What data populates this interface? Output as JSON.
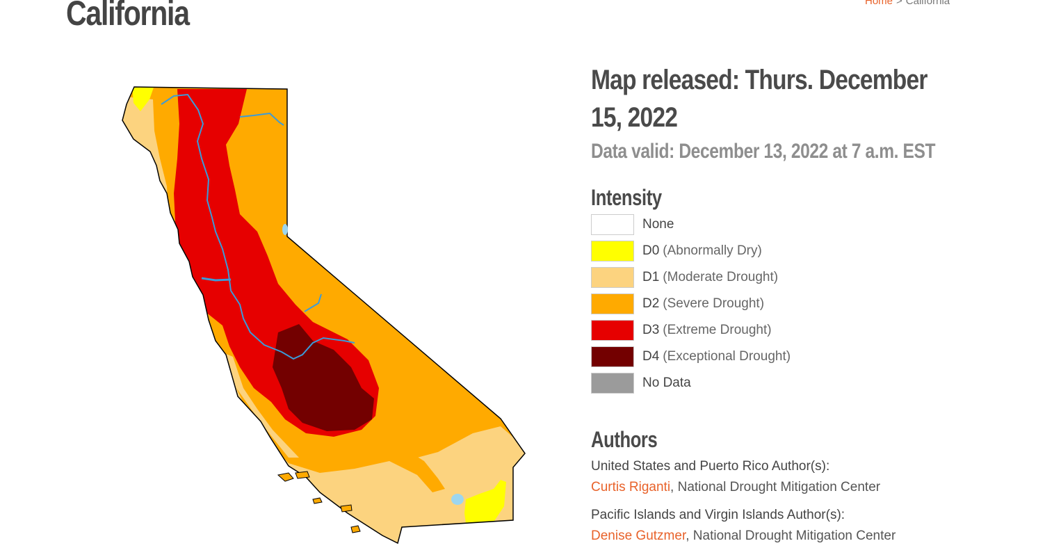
{
  "header": {
    "title": "California",
    "breadcrumb": {
      "home": "Home",
      "separator": ">",
      "current": "California"
    }
  },
  "map": {
    "colors": {
      "none": "#ffffff",
      "d0": "#ffff00",
      "d1": "#fcd37f",
      "d2": "#ffaa00",
      "d3": "#e60000",
      "d4": "#730000",
      "no_data": "#9b9b9b",
      "water": "#3b9bd9",
      "lake": "#9dd6ef"
    }
  },
  "release": {
    "released": "Map released: Thurs. December 15, 2022",
    "valid": "Data valid: December 13, 2022 at 7 a.m. EST"
  },
  "legend": {
    "title": "Intensity",
    "items": [
      {
        "code": "None",
        "desc": "",
        "color": "#ffffff"
      },
      {
        "code": "D0",
        "desc": "(Abnormally Dry)",
        "color": "#ffff00"
      },
      {
        "code": "D1",
        "desc": "(Moderate Drought)",
        "color": "#fcd37f"
      },
      {
        "code": "D2",
        "desc": "(Severe Drought)",
        "color": "#ffaa00"
      },
      {
        "code": "D3",
        "desc": "(Extreme Drought)",
        "color": "#e60000"
      },
      {
        "code": "D4",
        "desc": "(Exceptional Drought)",
        "color": "#730000"
      },
      {
        "code": "No Data",
        "desc": "",
        "color": "#9b9b9b"
      }
    ]
  },
  "authors": {
    "title": "Authors",
    "groups": [
      {
        "heading": "United States and Puerto Rico Author(s):",
        "name": "Curtis Riganti",
        "org": ", National Drought Mitigation Center"
      },
      {
        "heading": "Pacific Islands and Virgin Islands Author(s):",
        "name": "Denise Gutzmer",
        "org": ", National Drought Mitigation Center"
      }
    ]
  }
}
